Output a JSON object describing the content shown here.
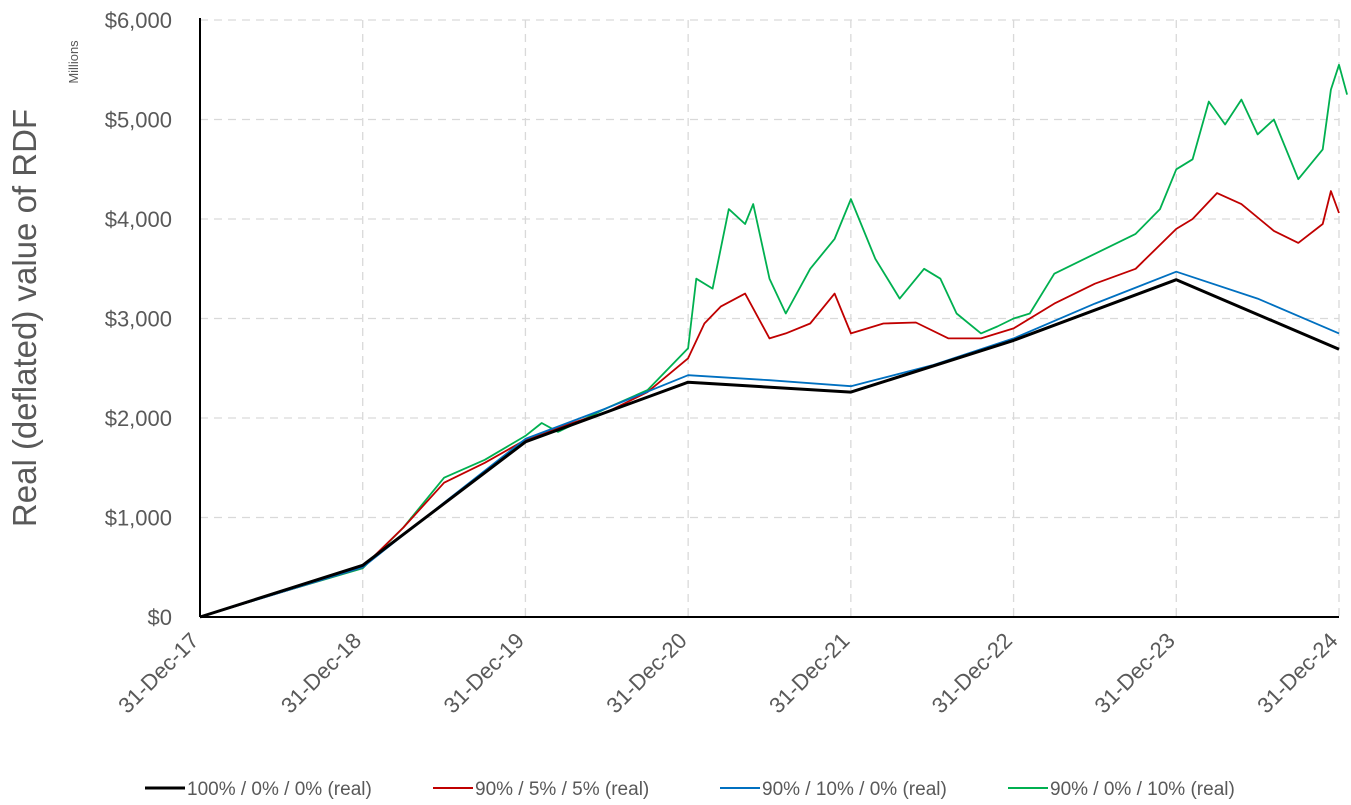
{
  "chart_data": {
    "type": "line",
    "title": "",
    "xlabel": "",
    "ylabel": "Real (deflated) value of RDF",
    "units_label": "Millions",
    "ylim": [
      0,
      6000
    ],
    "yticks": [
      0,
      1000,
      2000,
      3000,
      4000,
      5000,
      6000
    ],
    "ytick_labels": [
      "$0",
      "$1,000",
      "$2,000",
      "$3,000",
      "$4,000",
      "$5,000",
      "$6,000"
    ],
    "x_categories": [
      "31-Dec-17",
      "31-Dec-18",
      "31-Dec-19",
      "31-Dec-20",
      "31-Dec-21",
      "31-Dec-22",
      "31-Dec-23",
      "31-Dec-24"
    ],
    "grid": true,
    "legend_position": "bottom",
    "series": [
      {
        "name": "100% / 0% / 0% (real)",
        "color": "#000000",
        "points": [
          [
            0,
            0
          ],
          [
            1,
            520
          ],
          [
            2,
            1760
          ],
          [
            3,
            2360
          ],
          [
            4,
            2260
          ],
          [
            5,
            2780
          ],
          [
            6,
            3390
          ],
          [
            7,
            2690
          ]
        ]
      },
      {
        "name": "90% / 5% / 5% (real)",
        "color": "#c00000",
        "points": [
          [
            0,
            0
          ],
          [
            0.5,
            250
          ],
          [
            1,
            500
          ],
          [
            1.25,
            900
          ],
          [
            1.5,
            1350
          ],
          [
            1.75,
            1550
          ],
          [
            2,
            1780
          ],
          [
            2.25,
            1930
          ],
          [
            2.5,
            2060
          ],
          [
            2.75,
            2260
          ],
          [
            3,
            2600
          ],
          [
            3.1,
            2950
          ],
          [
            3.2,
            3120
          ],
          [
            3.35,
            3250
          ],
          [
            3.5,
            2800
          ],
          [
            3.6,
            2850
          ],
          [
            3.75,
            2950
          ],
          [
            3.9,
            3250
          ],
          [
            4,
            2850
          ],
          [
            4.2,
            2950
          ],
          [
            4.4,
            2960
          ],
          [
            4.6,
            2800
          ],
          [
            4.8,
            2800
          ],
          [
            5,
            2900
          ],
          [
            5.25,
            3150
          ],
          [
            5.5,
            3350
          ],
          [
            5.75,
            3500
          ],
          [
            6,
            3900
          ],
          [
            6.1,
            4000
          ],
          [
            6.25,
            4260
          ],
          [
            6.4,
            4150
          ],
          [
            6.6,
            3880
          ],
          [
            6.75,
            3760
          ],
          [
            6.9,
            3950
          ],
          [
            6.95,
            4280
          ],
          [
            7,
            4060
          ]
        ]
      },
      {
        "name": "90% / 10% / 0% (real)",
        "color": "#0070c0",
        "points": [
          [
            0,
            0
          ],
          [
            1,
            500
          ],
          [
            1.5,
            1150
          ],
          [
            2,
            1790
          ],
          [
            2.5,
            2100
          ],
          [
            3,
            2430
          ],
          [
            3.5,
            2380
          ],
          [
            4,
            2320
          ],
          [
            4.5,
            2530
          ],
          [
            5,
            2800
          ],
          [
            5.5,
            3150
          ],
          [
            6,
            3470
          ],
          [
            6.5,
            3200
          ],
          [
            7,
            2850
          ]
        ]
      },
      {
        "name": "90% / 0% / 10% (real)",
        "color": "#00b050",
        "points": [
          [
            0,
            0
          ],
          [
            0.5,
            250
          ],
          [
            1,
            490
          ],
          [
            1.25,
            900
          ],
          [
            1.5,
            1400
          ],
          [
            1.75,
            1580
          ],
          [
            2,
            1820
          ],
          [
            2.1,
            1950
          ],
          [
            2.2,
            1860
          ],
          [
            2.5,
            2100
          ],
          [
            2.75,
            2280
          ],
          [
            3,
            2700
          ],
          [
            3.05,
            3400
          ],
          [
            3.15,
            3300
          ],
          [
            3.25,
            4100
          ],
          [
            3.35,
            3950
          ],
          [
            3.4,
            4150
          ],
          [
            3.5,
            3400
          ],
          [
            3.6,
            3050
          ],
          [
            3.75,
            3500
          ],
          [
            3.9,
            3800
          ],
          [
            4,
            4200
          ],
          [
            4.15,
            3600
          ],
          [
            4.3,
            3200
          ],
          [
            4.45,
            3500
          ],
          [
            4.55,
            3400
          ],
          [
            4.65,
            3050
          ],
          [
            4.8,
            2850
          ],
          [
            4.9,
            2920
          ],
          [
            5,
            3000
          ],
          [
            5.1,
            3050
          ],
          [
            5.25,
            3450
          ],
          [
            5.5,
            3650
          ],
          [
            5.75,
            3850
          ],
          [
            5.9,
            4100
          ],
          [
            6,
            4500
          ],
          [
            6.1,
            4600
          ],
          [
            6.2,
            5180
          ],
          [
            6.3,
            4950
          ],
          [
            6.4,
            5200
          ],
          [
            6.5,
            4850
          ],
          [
            6.6,
            5000
          ],
          [
            6.75,
            4400
          ],
          [
            6.9,
            4700
          ],
          [
            6.95,
            5300
          ],
          [
            7,
            5550
          ],
          [
            7.05,
            5250
          ]
        ]
      }
    ]
  }
}
